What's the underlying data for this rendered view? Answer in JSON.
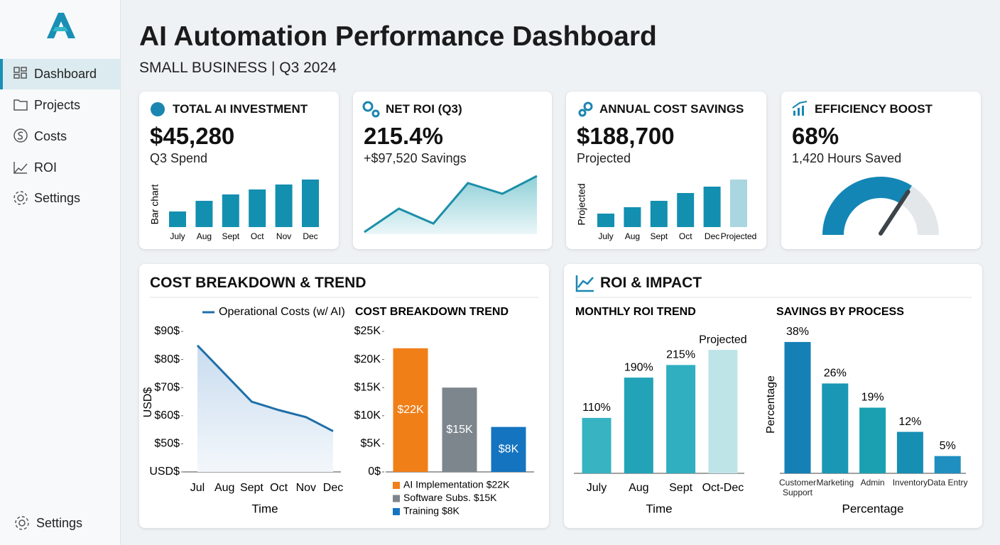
{
  "sidebar": {
    "nav": [
      "Dashboard",
      "Projects",
      "Costs",
      "ROI",
      "Settings"
    ],
    "footer": "Settings"
  },
  "header": {
    "title": "AI Automation Performance Dashboard",
    "subtitle": "SMALL BUSINESS | Q3 2024"
  },
  "kpis": [
    {
      "title": "TOTAL AI INVESTMENT",
      "value": "$45,280",
      "sub": "Q3 Spend"
    },
    {
      "title": "NET ROI (Q3)",
      "value": "215.4%",
      "sub": "+$97,520 Savings"
    },
    {
      "title": "ANNUAL COST SAVINGS",
      "value": "$188,700",
      "sub": "Projected"
    },
    {
      "title": "EFFICIENCY BOOST",
      "value": "68%",
      "sub": "1,420 Hours Saved"
    }
  ],
  "panels": [
    {
      "title": "COST BREAKDOWN & TREND"
    },
    {
      "title": "ROI & IMPACT"
    }
  ],
  "chart_data": [
    {
      "type": "bar",
      "ylabel": "Bar chart",
      "categories": [
        "July",
        "Aug",
        "Sept",
        "Oct",
        "Nov",
        "Dec"
      ],
      "values": [
        22,
        37,
        46,
        53,
        60,
        67
      ],
      "color": "#138fb0"
    },
    {
      "type": "line",
      "values": [
        13,
        46,
        25,
        82,
        67,
        92
      ],
      "color": "#1d8fa8"
    },
    {
      "type": "bar",
      "ylabel": "Projected",
      "categories": [
        "July",
        "Aug",
        "Sept",
        "Oct",
        "Dec",
        "Projected"
      ],
      "values": [
        19,
        28,
        37,
        48,
        57,
        67
      ],
      "colors": [
        "#138fb0",
        "#138fb0",
        "#138fb0",
        "#138fb0",
        "#138fb0",
        "#a9d6e0"
      ]
    },
    {
      "type": "gauge",
      "value": 68,
      "ylim": [
        0,
        100
      ],
      "color": "#1386b5"
    },
    {
      "type": "line",
      "categories": [
        "Jul",
        "Aug",
        "Sept",
        "Oct",
        "Nov",
        "Dec"
      ],
      "series": [
        {
          "name": "Operational Costs (w/ AI)",
          "color": "#1f6fa8",
          "values": [
            85,
            75,
            65,
            62,
            59.5,
            54.5
          ]
        }
      ],
      "ylim": [
        40,
        90
      ],
      "yticks": [
        {
          "value": 40,
          "label": "USD$"
        },
        {
          "value": 50,
          "label": "$50$"
        },
        {
          "value": 60,
          "label": "$60$"
        },
        {
          "value": 70,
          "label": "$70$"
        },
        {
          "value": 80,
          "label": "$80$"
        },
        {
          "value": 90,
          "label": "$90$"
        }
      ],
      "ylabel": "USD$",
      "xlabel": "Time"
    },
    {
      "type": "bar",
      "title": "COST BREAKDOWN TREND",
      "categories": [
        null,
        null,
        null
      ],
      "values": [
        22,
        15,
        8
      ],
      "value_labels": [
        "$22K",
        "$15K",
        "$8K"
      ],
      "colors": [
        "#f07f18",
        "#7d868d",
        "#1474c0"
      ],
      "ylim": [
        0,
        25
      ],
      "yticks": [
        {
          "value": 0,
          "label": "0$"
        },
        {
          "value": 5,
          "label": "$5K"
        },
        {
          "value": 10,
          "label": "$10K"
        },
        {
          "value": 15,
          "label": "$15K"
        },
        {
          "value": 20,
          "label": "$20K"
        },
        {
          "value": 25,
          "label": "$25K"
        }
      ],
      "legend": [
        "AI Implementation $22K",
        "Software Subs. $15K",
        "Training $8K"
      ]
    },
    {
      "type": "bar",
      "title": "MONTHLY ROI TREND",
      "categories": [
        "July",
        "Aug",
        "Sept",
        "Oct-Dec"
      ],
      "values": [
        110,
        190,
        215,
        245
      ],
      "value_labels": [
        "110%",
        "190%",
        "215%",
        "Projected"
      ],
      "colors": [
        "#37b3c2",
        "#22a3b8",
        "#2fafc0",
        "#bfe4e8"
      ],
      "xlabel": "Time"
    },
    {
      "type": "bar",
      "title": "SAVINGS BY PROCESS",
      "categories": [
        "Customer Support",
        "Marketing",
        "Admin",
        "Inventory",
        "Data Entry"
      ],
      "values": [
        38,
        26,
        19,
        12,
        5
      ],
      "value_labels": [
        "38%",
        "26%",
        "19%",
        "12%",
        "5%"
      ],
      "colors": [
        "#1480b6",
        "#1a97b4",
        "#1aa0b0",
        "#168fb3",
        "#1f8fbf"
      ],
      "ylabel": "Percentage",
      "xlabel": "Percentage"
    }
  ]
}
